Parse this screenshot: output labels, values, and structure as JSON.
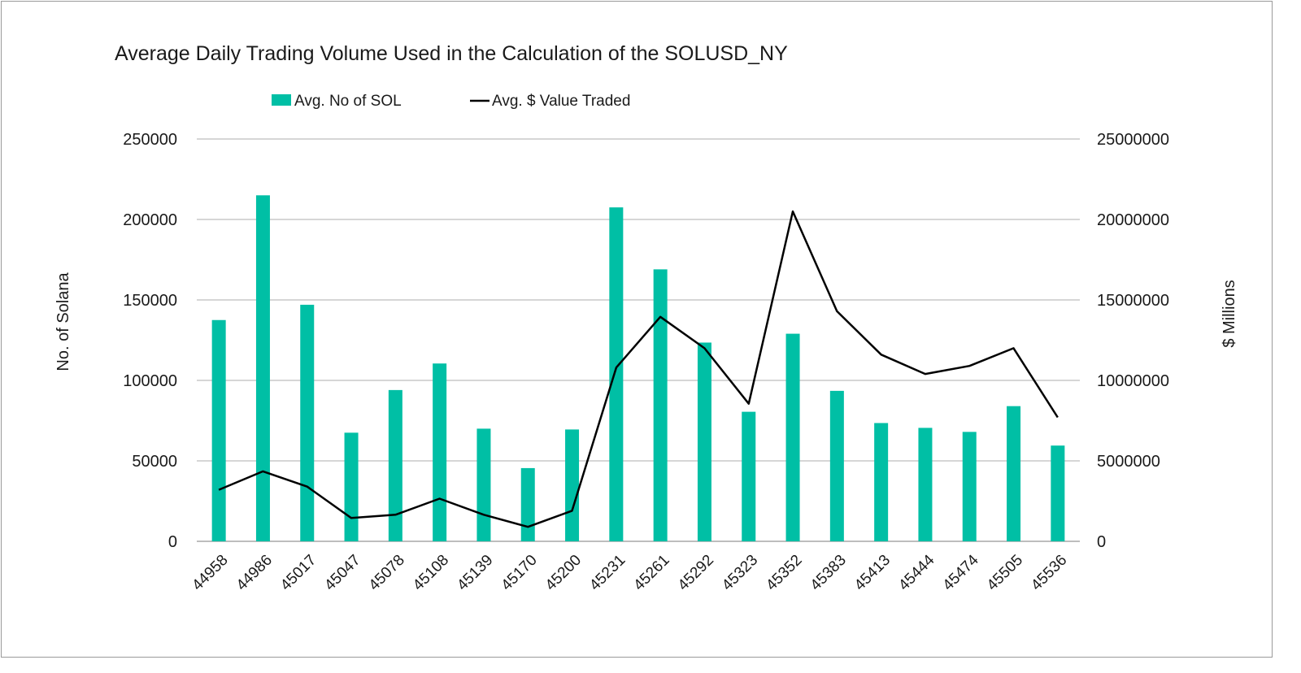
{
  "chart_data": {
    "type": "bar+line",
    "title": "Average Daily Trading Volume Used in the Calculation of the SOLUSD_NY",
    "categories": [
      "44958",
      "44986",
      "45017",
      "45047",
      "45078",
      "45108",
      "45139",
      "45170",
      "45200",
      "45231",
      "45261",
      "45292",
      "45323",
      "45352",
      "45383",
      "45413",
      "45444",
      "45474",
      "45505",
      "45536"
    ],
    "series": [
      {
        "name": "Avg. No of SOL",
        "type": "bar",
        "axis": "left",
        "color": "#00bfa5",
        "values": [
          137500,
          215000,
          147000,
          67500,
          94000,
          110500,
          70000,
          45500,
          69500,
          207500,
          169000,
          123500,
          80500,
          129000,
          93500,
          73500,
          70500,
          68000,
          84000,
          59500
        ]
      },
      {
        "name": "Avg. $ Value Traded",
        "type": "line",
        "axis": "right",
        "color": "#000000",
        "values": [
          3200000,
          4350000,
          3400000,
          1450000,
          1650000,
          2650000,
          1650000,
          900000,
          1900000,
          10800000,
          13950000,
          12000000,
          8550000,
          20500000,
          14300000,
          11600000,
          10400000,
          10900000,
          12000000,
          7700000
        ]
      }
    ],
    "ylabel": "No. of Solana",
    "y2label": "$ Millions",
    "ylim": [
      0,
      250000
    ],
    "y2lim": [
      0,
      25000000
    ],
    "yticks": [
      "0",
      "50000",
      "100000",
      "150000",
      "200000",
      "250000"
    ],
    "y2ticks": [
      "0",
      "5000000",
      "10000000",
      "15000000",
      "20000000",
      "25000000"
    ],
    "legend": "top-center",
    "grid": true
  }
}
